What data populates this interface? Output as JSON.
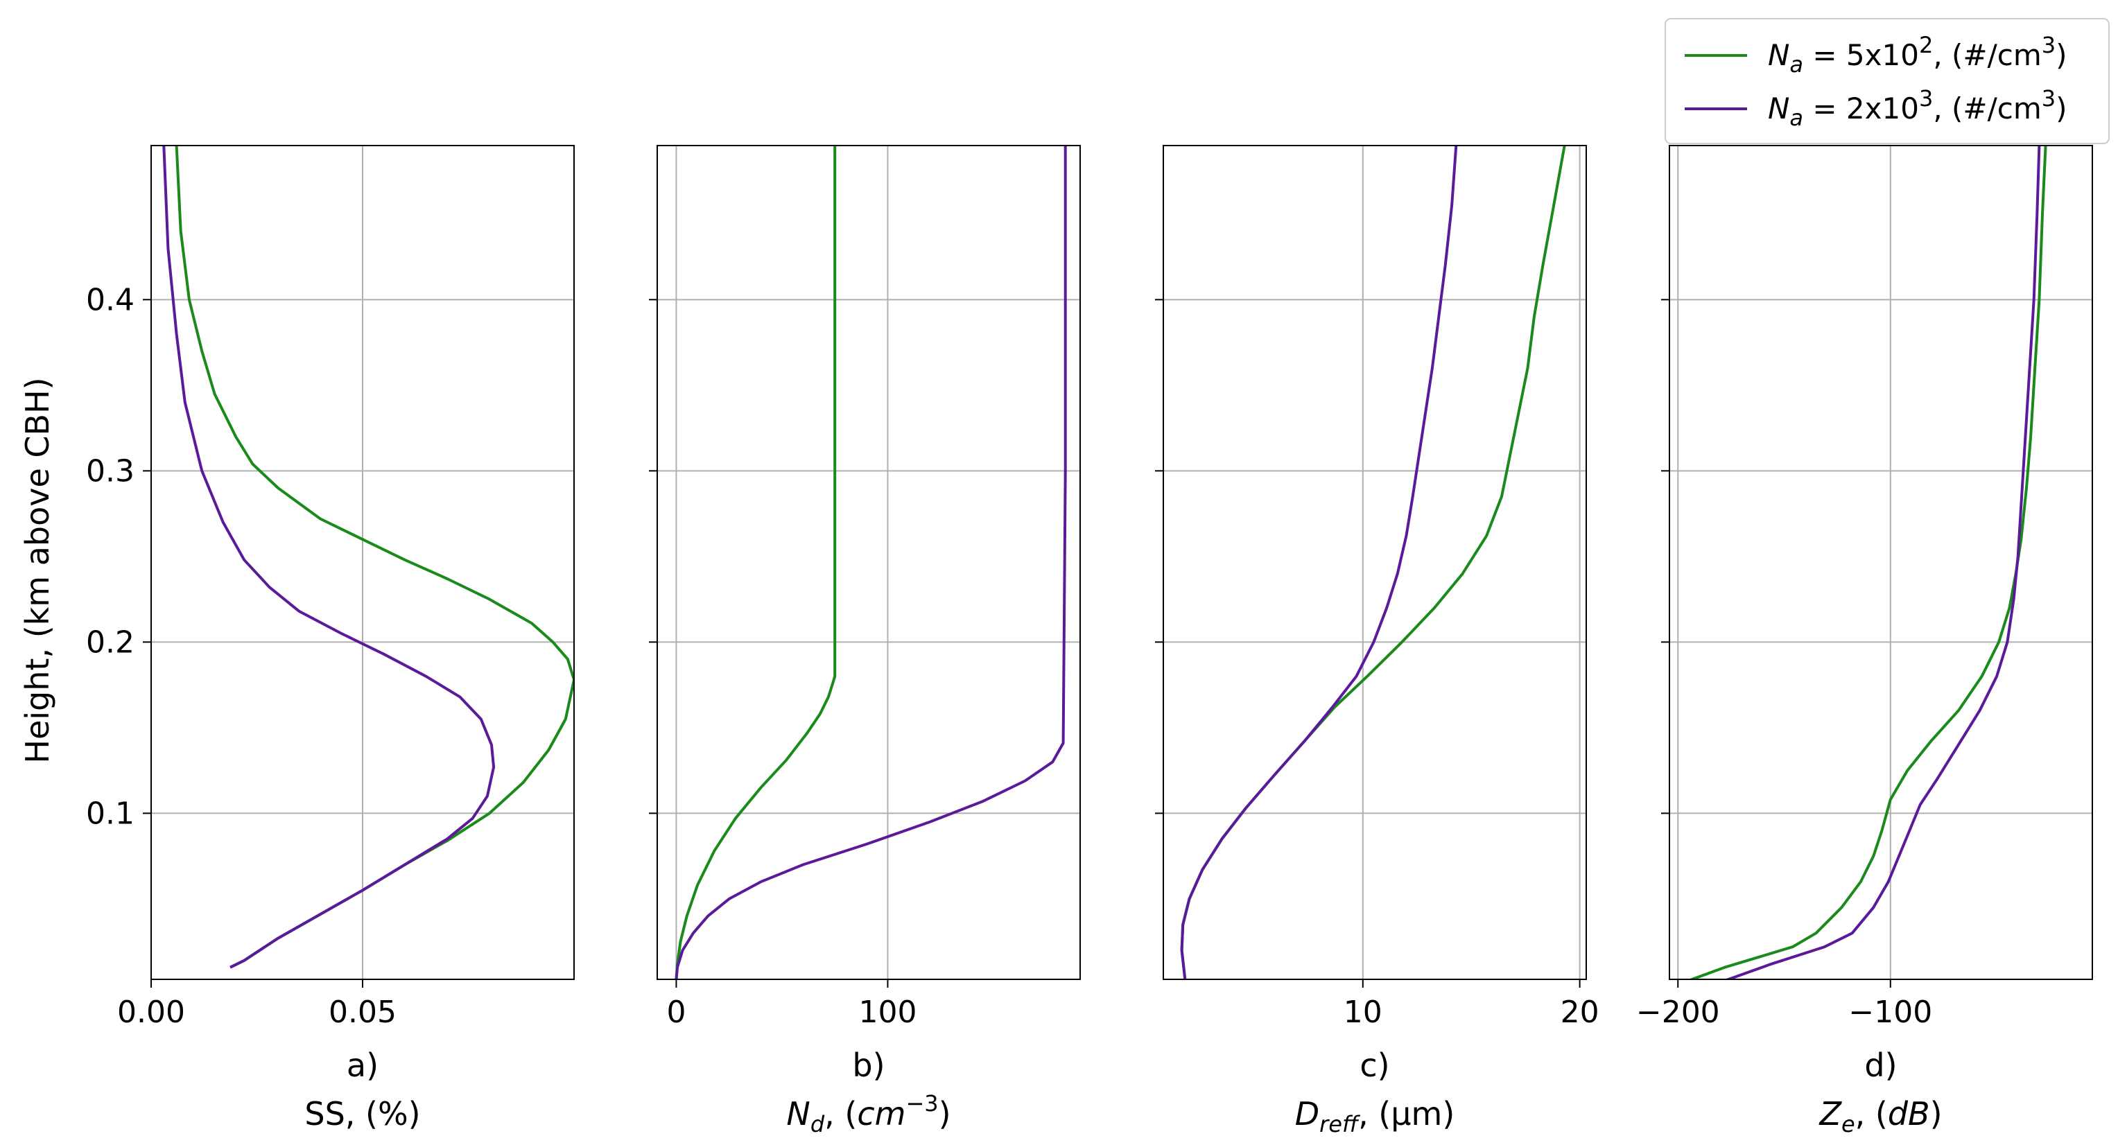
{
  "figure": {
    "ylabel": "Height, (km above CBH)"
  },
  "colors": {
    "series_1": "#1a8a1a",
    "series_2": "#5b1a9a",
    "grid": "#b0b0b0",
    "axis": "#000000"
  },
  "legend": {
    "placement": "top-right",
    "entries": [
      {
        "series": 0,
        "text_pre": "N",
        "sub": "a",
        "text_mid": " = 5x10",
        "sup": "2",
        "text_post": ", (#/cm",
        "sup2": "3",
        "text_end": ")"
      },
      {
        "series": 1,
        "text_pre": "N",
        "sub": "a",
        "text_mid": " = 2x10",
        "sup": "3",
        "text_post": ", (#/cm",
        "sup2": "3",
        "text_end": ")"
      }
    ]
  },
  "chart_data": [
    {
      "type": "line",
      "panel_label": "a)",
      "xlabel": "SS, (%)",
      "xlim": [
        0.0,
        0.1
      ],
      "ylim": [
        0.003,
        0.49
      ],
      "xticks": [
        0.0,
        0.05
      ],
      "xtick_labels": [
        "0.00",
        "0.05"
      ],
      "yticks": [
        0.1,
        0.2,
        0.3,
        0.4
      ],
      "ytick_labels": [
        "0.1",
        "0.2",
        "0.3",
        "0.4"
      ],
      "grid": true,
      "series": [
        {
          "x": [
            0.0187,
            0.022,
            0.03,
            0.04,
            0.05,
            0.06,
            0.07,
            0.08,
            0.088,
            0.094,
            0.098,
            0.1,
            0.0985,
            0.095,
            0.09,
            0.08,
            0.07,
            0.06,
            0.05,
            0.04,
            0.03,
            0.024,
            0.02,
            0.015,
            0.012,
            0.009,
            0.007,
            0.006
          ],
          "y": [
            0.01,
            0.014,
            0.027,
            0.041,
            0.055,
            0.07,
            0.084,
            0.1,
            0.118,
            0.137,
            0.155,
            0.178,
            0.19,
            0.2,
            0.211,
            0.225,
            0.237,
            0.248,
            0.26,
            0.272,
            0.29,
            0.304,
            0.32,
            0.345,
            0.37,
            0.4,
            0.44,
            0.49
          ]
        },
        {
          "x": [
            0.0187,
            0.022,
            0.03,
            0.04,
            0.05,
            0.06,
            0.07,
            0.076,
            0.0795,
            0.081,
            0.0805,
            0.078,
            0.073,
            0.065,
            0.055,
            0.045,
            0.035,
            0.028,
            0.022,
            0.017,
            0.012,
            0.008,
            0.006,
            0.004,
            0.003
          ],
          "y": [
            0.01,
            0.014,
            0.027,
            0.041,
            0.055,
            0.07,
            0.085,
            0.097,
            0.11,
            0.127,
            0.14,
            0.155,
            0.168,
            0.18,
            0.193,
            0.205,
            0.218,
            0.232,
            0.248,
            0.27,
            0.3,
            0.34,
            0.38,
            0.43,
            0.49
          ]
        }
      ]
    },
    {
      "type": "line",
      "panel_label": "b)",
      "xlabel": "N_d, (cm^-3)",
      "xlim": [
        -9,
        191
      ],
      "ylim": [
        0.003,
        0.49
      ],
      "xticks": [
        0,
        100
      ],
      "xtick_labels": [
        "0",
        "100"
      ],
      "yticks": [
        0.1,
        0.2,
        0.3,
        0.4
      ],
      "ytick_labels": [
        "",
        "",
        "",
        ""
      ],
      "grid": true,
      "series": [
        {
          "x": [
            0,
            0.5,
            2,
            5,
            10,
            18,
            28,
            40,
            52,
            62,
            68,
            72,
            74,
            75,
            75,
            75
          ],
          "y": [
            0.003,
            0.012,
            0.025,
            0.04,
            0.058,
            0.078,
            0.097,
            0.115,
            0.131,
            0.147,
            0.158,
            0.168,
            0.176,
            0.18,
            0.3,
            0.49
          ],
          "label_ref": 0
        },
        {
          "x": [
            0,
            0.5,
            3,
            8,
            15,
            25,
            40,
            60,
            90,
            120,
            145,
            165,
            178,
            183,
            184,
            184
          ],
          "y": [
            0.003,
            0.01,
            0.02,
            0.03,
            0.04,
            0.05,
            0.06,
            0.07,
            0.082,
            0.095,
            0.107,
            0.119,
            0.13,
            0.141,
            0.3,
            0.49
          ],
          "label_ref": 1
        }
      ]
    },
    {
      "type": "line",
      "panel_label": "c)",
      "xlabel": "D_reff, (µm)",
      "xlim": [
        0.8,
        20.3
      ],
      "ylim": [
        0.003,
        0.49
      ],
      "xticks": [
        10,
        20
      ],
      "xtick_labels": [
        "10",
        "20"
      ],
      "yticks": [
        0.1,
        0.2,
        0.3,
        0.4
      ],
      "ytick_labels": [
        "",
        "",
        "",
        ""
      ],
      "grid": true,
      "series": [
        {
          "x": [
            1.8,
            1.65,
            1.7,
            2.0,
            2.6,
            3.5,
            4.6,
            5.9,
            7.3,
            8.7,
            10.2,
            11.8,
            13.3,
            14.6,
            15.7,
            16.4,
            16.8,
            17.2,
            17.6,
            17.9,
            18.3,
            18.8,
            19.3
          ],
          "y": [
            0.003,
            0.02,
            0.035,
            0.05,
            0.067,
            0.085,
            0.103,
            0.122,
            0.142,
            0.162,
            0.18,
            0.2,
            0.22,
            0.24,
            0.262,
            0.285,
            0.31,
            0.335,
            0.36,
            0.39,
            0.42,
            0.455,
            0.49
          ]
        },
        {
          "x": [
            1.8,
            1.65,
            1.7,
            2.0,
            2.6,
            3.5,
            4.6,
            5.9,
            7.3,
            8.6,
            9.7,
            10.5,
            11.1,
            11.6,
            12.0,
            12.3,
            12.6,
            12.9,
            13.2,
            13.5,
            13.8,
            14.1,
            14.3
          ],
          "y": [
            0.003,
            0.02,
            0.035,
            0.05,
            0.067,
            0.085,
            0.103,
            0.122,
            0.142,
            0.162,
            0.18,
            0.2,
            0.22,
            0.24,
            0.262,
            0.285,
            0.31,
            0.335,
            0.36,
            0.39,
            0.42,
            0.455,
            0.49
          ]
        }
      ]
    },
    {
      "type": "line",
      "panel_label": "d)",
      "xlabel": "Z_e, (dB)",
      "xlim": [
        -204,
        -5
      ],
      "ylim": [
        0.003,
        0.49
      ],
      "xticks": [
        -200,
        -100
      ],
      "xtick_labels": [
        "−200",
        "−100"
      ],
      "yticks": [
        0.1,
        0.2,
        0.3,
        0.4
      ],
      "ytick_labels": [
        "",
        "",
        "",
        ""
      ],
      "grid": true,
      "series": [
        {
          "x": [
            -200,
            -178,
            -146,
            -135,
            -123,
            -114,
            -108,
            -104,
            -100,
            -92,
            -81,
            -68,
            -57,
            -49,
            -44,
            -41,
            -38.5,
            -36,
            -34,
            -32,
            -30,
            -28.5,
            -27
          ],
          "y": [
            0.0,
            0.01,
            0.022,
            0.03,
            0.045,
            0.06,
            0.075,
            0.09,
            0.108,
            0.125,
            0.142,
            0.16,
            0.18,
            0.2,
            0.22,
            0.24,
            0.26,
            0.29,
            0.32,
            0.36,
            0.4,
            0.45,
            0.49
          ]
        },
        {
          "x": [
            -183,
            -156,
            -131,
            -118,
            -108,
            -101,
            -96,
            -91,
            -86,
            -78,
            -68,
            -58,
            -50,
            -45,
            -42,
            -40,
            -38.5,
            -37,
            -35.5,
            -34,
            -32.5,
            -31,
            -30
          ],
          "y": [
            0.0,
            0.012,
            0.022,
            0.03,
            0.045,
            0.06,
            0.075,
            0.09,
            0.105,
            0.12,
            0.14,
            0.16,
            0.18,
            0.2,
            0.225,
            0.25,
            0.28,
            0.31,
            0.34,
            0.37,
            0.4,
            0.45,
            0.49
          ]
        }
      ]
    }
  ]
}
